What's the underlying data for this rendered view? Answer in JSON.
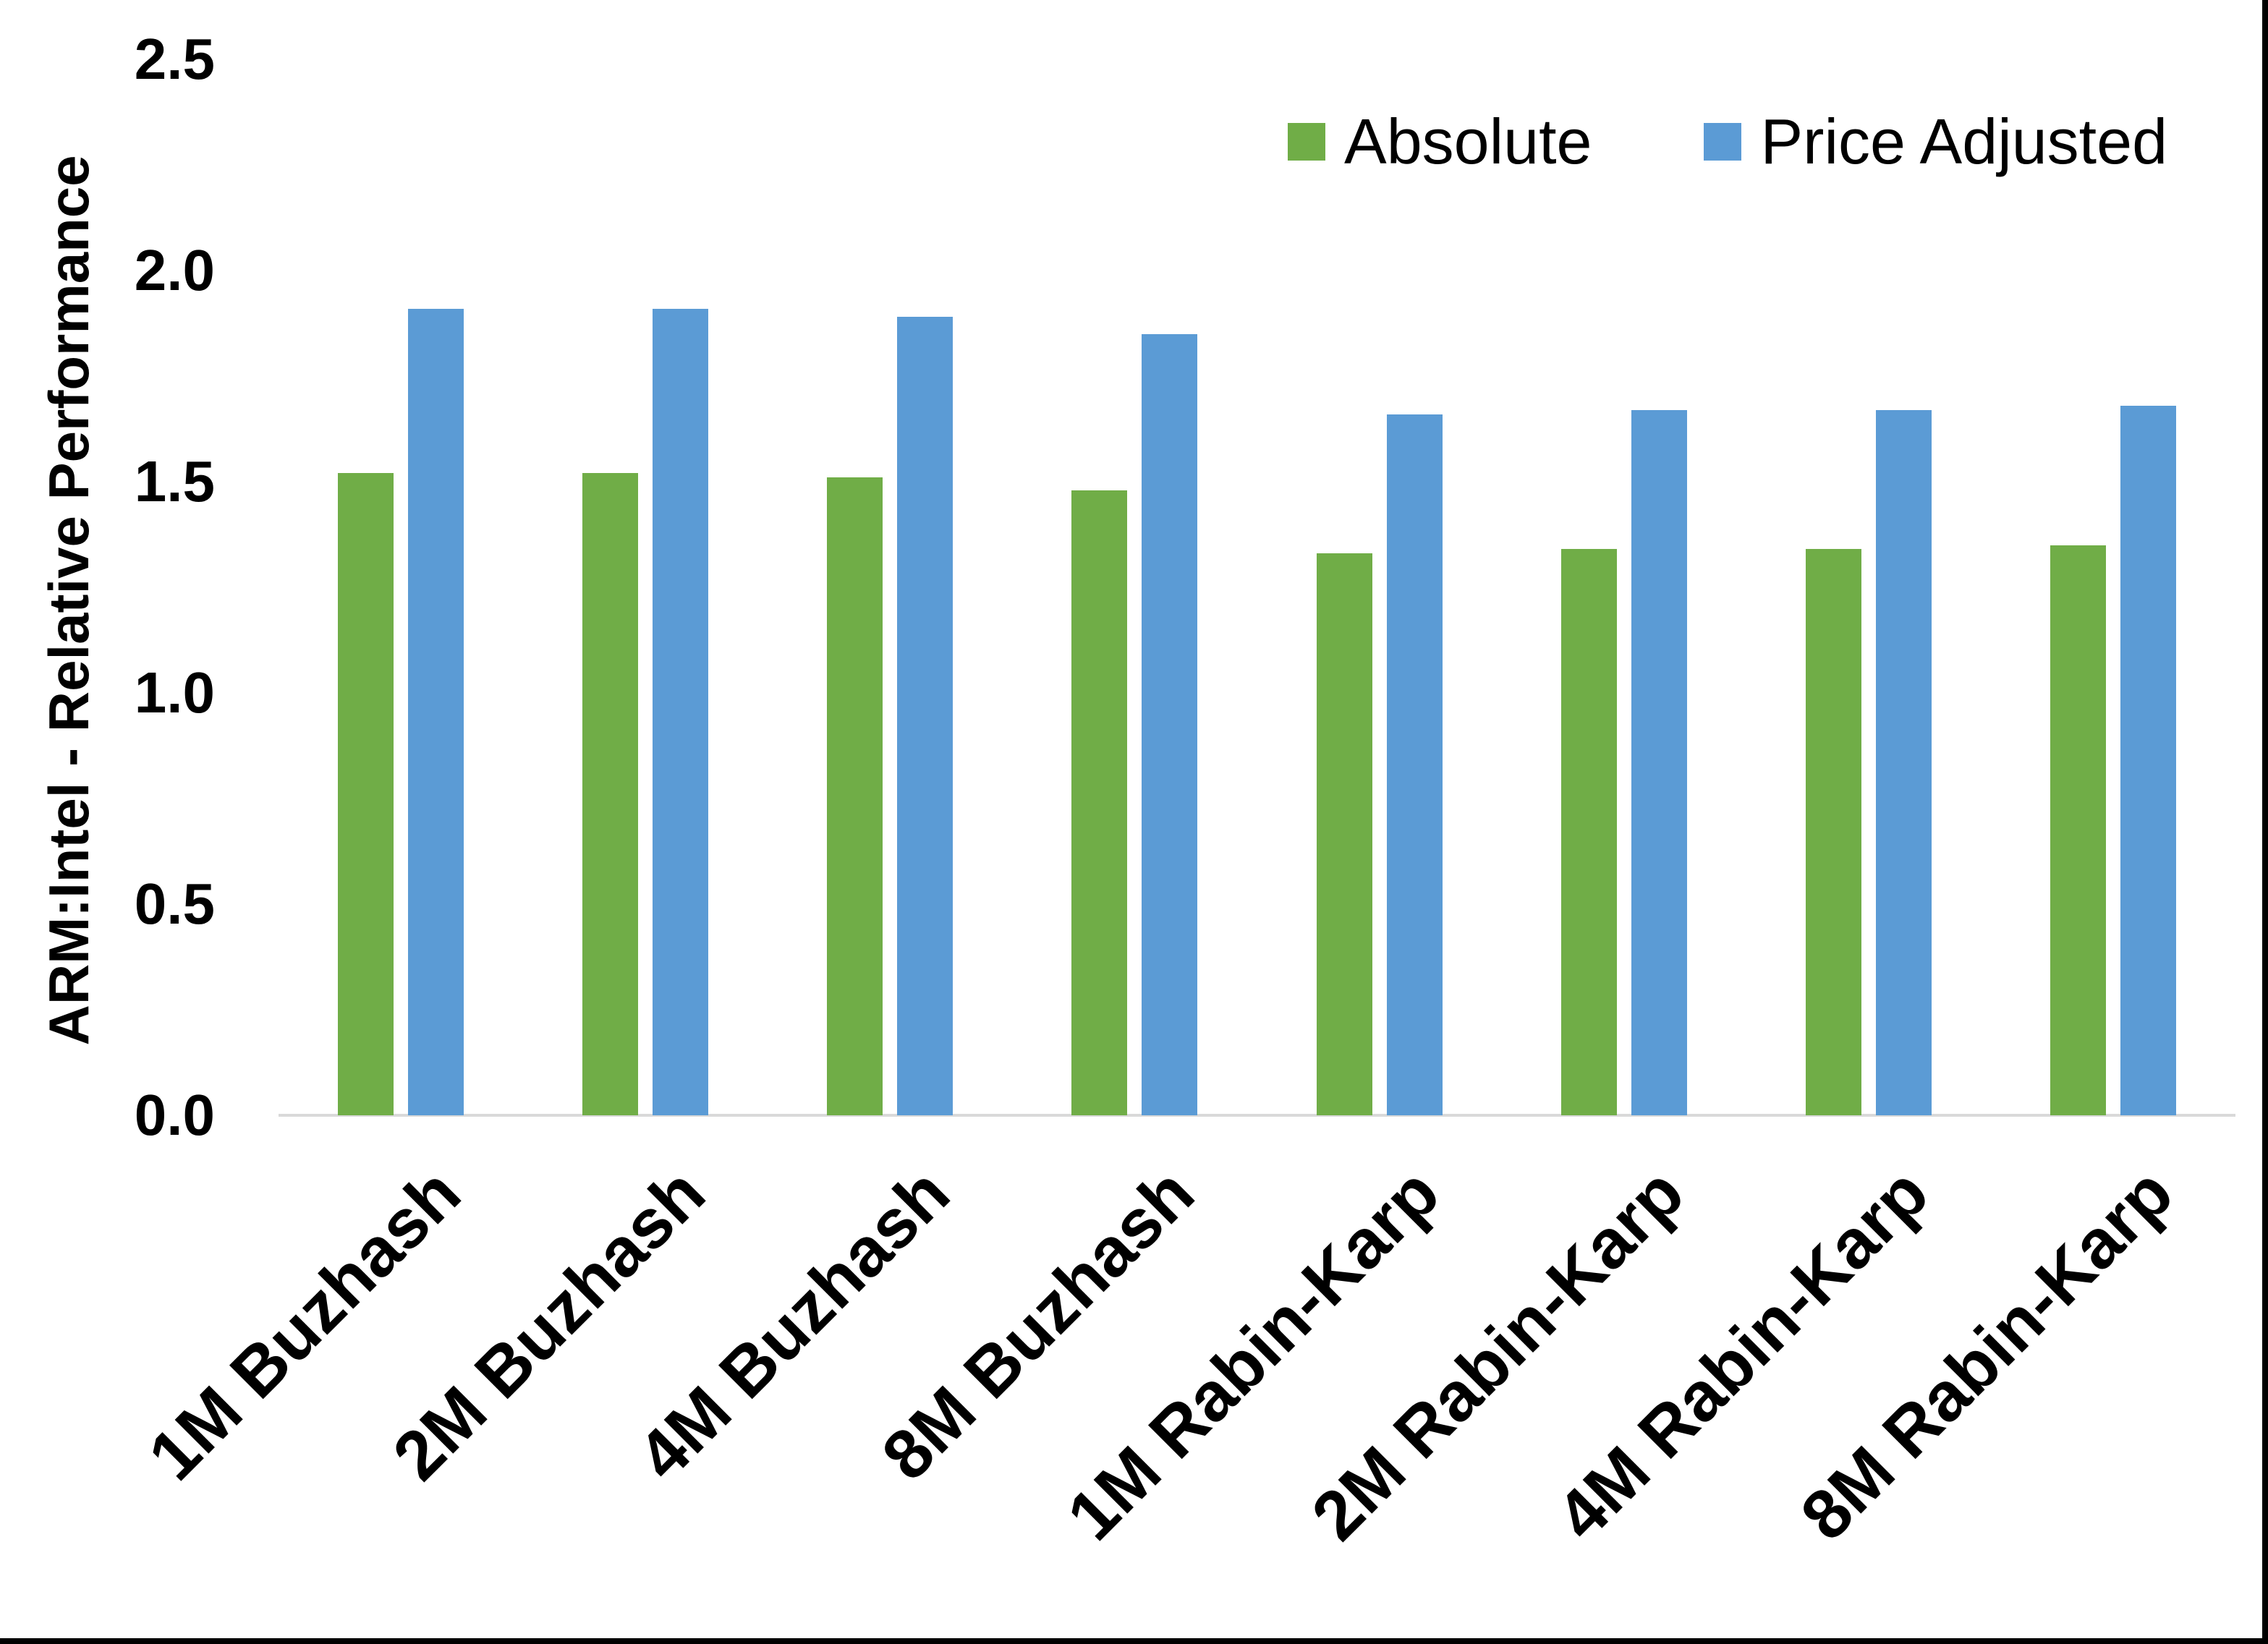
{
  "chart_data": {
    "type": "bar",
    "title": "",
    "categories": [
      "1M Buzhash",
      "2M Buzhash",
      "4M Buzhash",
      "8M Buzhash",
      "1M Rabin-Karp",
      "2M Rabin-Karp",
      "4M Rabin-Karp",
      "8M Rabin-Karp"
    ],
    "series": [
      {
        "name": "Absolute",
        "color": "#70AD47",
        "values": [
          1.52,
          1.52,
          1.51,
          1.48,
          1.33,
          1.34,
          1.34,
          1.35
        ]
      },
      {
        "name": "Price Adjusted",
        "color": "#5B9BD5",
        "values": [
          1.91,
          1.91,
          1.89,
          1.85,
          1.66,
          1.67,
          1.67,
          1.68
        ]
      }
    ],
    "xlabel": "",
    "ylabel": "ARM:Intel - Relative Performance",
    "ylim": [
      0,
      2.5
    ],
    "ytick_labels": [
      "0.0",
      "0.5",
      "1.0",
      "1.5",
      "2.0",
      "2.5"
    ],
    "grid": false,
    "legend_position": "top-right",
    "axis_line_color": "#D9D9D9",
    "frame_bar_color": "#000000"
  }
}
